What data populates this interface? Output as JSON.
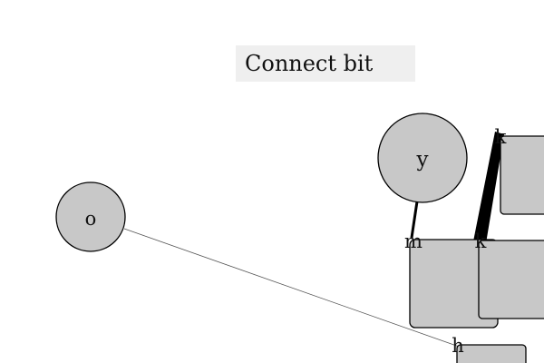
{
  "title": "Connect bit",
  "colors": {
    "node_fill": "#c8c8c8",
    "stroke": "#000000",
    "background": "#ffffff",
    "title_background": "#efefef"
  },
  "nodes": {
    "circle_o": "o",
    "circle_y": "y"
  },
  "ports": {
    "m": "m",
    "k_top": "k",
    "k_mid": "k",
    "h": "h"
  }
}
